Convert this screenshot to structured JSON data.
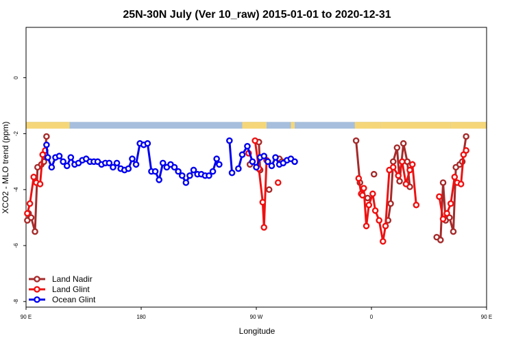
{
  "chart_data": {
    "type": "line",
    "title": "25N-30N July (Ver 10_raw)   2015-01-01 to 2020-12-31",
    "xlabel": "Longitude",
    "ylabel": "XCO2 - MLO trend (ppm)",
    "xlim": [
      90,
      450
    ],
    "ylim": [
      -8.2,
      1.8
    ],
    "x_ticks": [
      {
        "value": 90,
        "label": "90 E"
      },
      {
        "value": 180,
        "label": "180"
      },
      {
        "value": 270,
        "label": "90 W"
      },
      {
        "value": 360,
        "label": "0"
      },
      {
        "value": 450,
        "label": "90 E"
      },
      {
        "value": 540,
        "label": "180"
      }
    ],
    "y_ticks": [
      {
        "value": 0,
        "label": "0"
      },
      {
        "value": -2,
        "label": "-2"
      },
      {
        "value": -4,
        "label": "-4"
      },
      {
        "value": -6,
        "label": "-6"
      },
      {
        "value": -8,
        "label": "-8"
      }
    ],
    "land_ocean_strip": {
      "y_top": -1.58,
      "y_bottom": -1.82,
      "ocean_color": "#a7bfdd",
      "land_color": "#f5d77a",
      "land_ranges": [
        [
          90,
          124
        ],
        [
          259,
          278
        ],
        [
          297,
          300
        ],
        [
          347,
          367
        ],
        [
          367,
          422
        ],
        [
          422,
          453
        ]
      ]
    },
    "legend_position": "bottom-left",
    "series": [
      {
        "name": "Land Nadir",
        "color": "#a52a2a",
        "points": [
          [
            91,
            -5.1
          ],
          [
            92,
            -4.85
          ],
          [
            94,
            -5.0
          ],
          [
            97,
            -5.5
          ],
          [
            99,
            -3.2
          ],
          [
            102,
            -3.1
          ],
          [
            104,
            -3.0
          ],
          [
            106,
            -2.1
          ],
          [
            265,
            -3.1
          ],
          [
            272,
            -2.3
          ],
          [
            273,
            -3.3
          ],
          [
            280,
            -4.0
          ],
          [
            288,
            -2.9
          ],
          [
            290,
            -3.0
          ],
          [
            348,
            -2.25
          ],
          [
            351,
            -3.75
          ],
          [
            357,
            -4.3
          ],
          [
            362,
            -3.45
          ],
          [
            373,
            -5.1
          ],
          [
            375,
            -4.5
          ],
          [
            377,
            -3.0
          ],
          [
            380,
            -2.5
          ],
          [
            382,
            -3.7
          ],
          [
            385,
            -2.35
          ],
          [
            388,
            -3.0
          ],
          [
            390,
            -3.9
          ],
          [
            411,
            -5.7
          ],
          [
            414,
            -5.8
          ],
          [
            416,
            -3.75
          ],
          [
            418,
            -5.1
          ],
          [
            421,
            -5.0
          ],
          [
            424,
            -5.5
          ],
          [
            426,
            -3.2
          ],
          [
            429,
            -3.1
          ],
          [
            431,
            -3.0
          ],
          [
            434,
            -2.1
          ]
        ]
      },
      {
        "name": "Land Glint",
        "color": "#ee1111",
        "points": [
          [
            91,
            -4.85
          ],
          [
            93,
            -4.5
          ],
          [
            96,
            -3.55
          ],
          [
            98,
            -3.75
          ],
          [
            101,
            -3.8
          ],
          [
            103,
            -2.75
          ],
          [
            105,
            -2.6
          ],
          [
            264,
            -2.7
          ],
          [
            269,
            -2.25
          ],
          [
            272,
            -3.25
          ],
          [
            275,
            -4.45
          ],
          [
            276,
            -5.35
          ],
          [
            278,
            -2.95
          ],
          [
            287,
            -3.75
          ],
          [
            350,
            -3.6
          ],
          [
            352,
            -4.15
          ],
          [
            353,
            -4.2
          ],
          [
            354,
            -3.95
          ],
          [
            356,
            -5.3
          ],
          [
            358,
            -4.55
          ],
          [
            361,
            -4.15
          ],
          [
            363,
            -4.75
          ],
          [
            366,
            -5.1
          ],
          [
            369,
            -5.85
          ],
          [
            371,
            -5.3
          ],
          [
            374,
            -3.3
          ],
          [
            377,
            -3.2
          ],
          [
            381,
            -3.5
          ],
          [
            384,
            -3.0
          ],
          [
            387,
            -3.8
          ],
          [
            390,
            -3.3
          ],
          [
            392,
            -3.1
          ],
          [
            395,
            -4.55
          ],
          [
            413,
            -4.25
          ],
          [
            416,
            -5.05
          ],
          [
            419,
            -4.85
          ],
          [
            422,
            -4.5
          ],
          [
            425,
            -3.55
          ],
          [
            427,
            -3.75
          ],
          [
            430,
            -3.8
          ],
          [
            432,
            -2.75
          ],
          [
            434,
            -2.6
          ]
        ]
      },
      {
        "name": "Ocean Glint",
        "color": "#0000ee",
        "points": [
          [
            106,
            -2.4
          ],
          [
            107,
            -2.85
          ],
          [
            110,
            -3.2
          ],
          [
            113,
            -2.85
          ],
          [
            116,
            -2.8
          ],
          [
            119,
            -3.0
          ],
          [
            122,
            -3.15
          ],
          [
            125,
            -2.85
          ],
          [
            128,
            -3.1
          ],
          [
            131,
            -3.05
          ],
          [
            134,
            -2.95
          ],
          [
            137,
            -2.9
          ],
          [
            140,
            -3.0
          ],
          [
            143,
            -3.0
          ],
          [
            146,
            -3.0
          ],
          [
            149,
            -3.1
          ],
          [
            152,
            -3.05
          ],
          [
            155,
            -3.05
          ],
          [
            158,
            -3.2
          ],
          [
            161,
            -3.05
          ],
          [
            164,
            -3.25
          ],
          [
            167,
            -3.3
          ],
          [
            170,
            -3.25
          ],
          [
            173,
            -2.9
          ],
          [
            176,
            -3.1
          ],
          [
            179,
            -2.35
          ],
          [
            182,
            -2.4
          ],
          [
            185,
            -2.35
          ],
          [
            188,
            -3.35
          ],
          [
            191,
            -3.35
          ],
          [
            194,
            -3.65
          ],
          [
            197,
            -3.05
          ],
          [
            200,
            -3.2
          ],
          [
            203,
            -3.1
          ],
          [
            206,
            -3.2
          ],
          [
            209,
            -3.35
          ],
          [
            212,
            -3.5
          ],
          [
            215,
            -3.75
          ],
          [
            218,
            -3.5
          ],
          [
            221,
            -3.3
          ],
          [
            224,
            -3.45
          ],
          [
            227,
            -3.45
          ],
          [
            230,
            -3.5
          ],
          [
            233,
            -3.5
          ],
          [
            236,
            -3.35
          ],
          [
            239,
            -2.9
          ],
          [
            241,
            -3.1
          ],
          [
            249,
            -2.25
          ],
          [
            251,
            -3.4
          ],
          [
            256,
            -3.25
          ],
          [
            259,
            -2.75
          ],
          [
            263,
            -2.45
          ],
          [
            267,
            -3.0
          ],
          [
            270,
            -3.2
          ],
          [
            273,
            -2.85
          ],
          [
            276,
            -2.8
          ],
          [
            279,
            -3.0
          ],
          [
            282,
            -3.15
          ],
          [
            285,
            -2.85
          ],
          [
            288,
            -3.1
          ],
          [
            291,
            -3.05
          ],
          [
            294,
            -2.95
          ],
          [
            297,
            -2.9
          ],
          [
            300,
            -3.0
          ]
        ]
      }
    ]
  }
}
